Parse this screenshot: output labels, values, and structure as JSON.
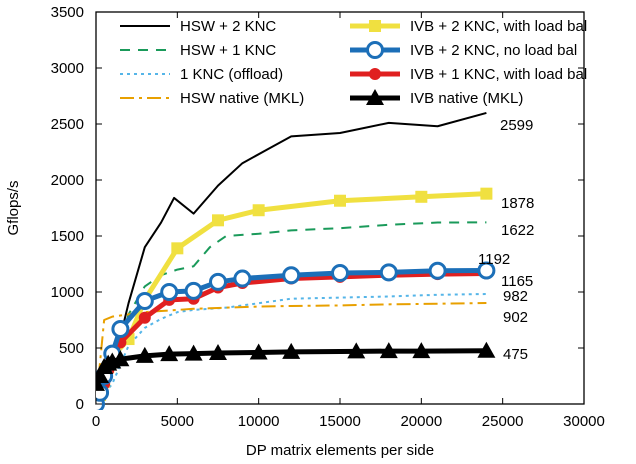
{
  "chart_data": {
    "type": "line",
    "title": "",
    "xlabel": "DP matrix elements per side",
    "ylabel": "Gflops/s",
    "xlim": [
      0,
      30000
    ],
    "ylim": [
      0,
      3500
    ],
    "xticks": [
      0,
      5000,
      10000,
      15000,
      20000,
      25000,
      30000
    ],
    "yticks": [
      0,
      500,
      1000,
      1500,
      2000,
      2500,
      3000,
      3500
    ],
    "legend_position": "top",
    "series": [
      {
        "name": "HSW + 2 KNC",
        "color": "#000000",
        "dash": "solid",
        "width": 2,
        "marker": "none",
        "x": [
          0,
          1000,
          2000,
          3000,
          4000,
          4800,
          6000,
          7500,
          9000,
          10500,
          12000,
          15000,
          18000,
          21000,
          24000
        ],
        "y": [
          0,
          300,
          900,
          1400,
          1620,
          1840,
          1700,
          1950,
          2150,
          2270,
          2390,
          2420,
          2510,
          2480,
          2599
        ],
        "end_label": "2599"
      },
      {
        "name": "HSW + 1 KNC",
        "color": "#1a9a5a",
        "dash": "10,8",
        "width": 2,
        "marker": "none",
        "x": [
          0,
          1000,
          2000,
          3000,
          4000,
          5000,
          6000,
          7000,
          8000,
          10000,
          12000,
          15000,
          18000,
          21000,
          24000
        ],
        "y": [
          0,
          280,
          800,
          1050,
          1150,
          1200,
          1230,
          1400,
          1500,
          1520,
          1550,
          1570,
          1600,
          1620,
          1622
        ],
        "end_label": "1622"
      },
      {
        "name": "1 KNC (offload)",
        "color": "#55b5e8",
        "dash": "3,4",
        "width": 2,
        "marker": "none",
        "x": [
          0,
          1000,
          2000,
          3000,
          4000,
          5000,
          6000,
          7000,
          8000,
          10000,
          12000,
          15000,
          18000,
          21000,
          24000
        ],
        "y": [
          0,
          180,
          520,
          680,
          760,
          820,
          840,
          850,
          860,
          900,
          940,
          950,
          960,
          975,
          982
        ],
        "end_label": "982"
      },
      {
        "name": "HSW native (MKL)",
        "color": "#e8a000",
        "dash": "14,5,3,5",
        "width": 2,
        "marker": "none",
        "x": [
          0,
          500,
          1000,
          2000,
          3000,
          4000,
          5000,
          6000,
          7000,
          8000,
          10000,
          12000,
          15000,
          18000,
          21000,
          24000
        ],
        "y": [
          0,
          750,
          780,
          800,
          820,
          830,
          840,
          850,
          855,
          860,
          870,
          875,
          880,
          890,
          895,
          902
        ],
        "end_label": "902"
      },
      {
        "name": "IVB + 2 KNC, with load bal",
        "color": "#f0e040",
        "dash": "solid",
        "width": 5,
        "marker": "square",
        "x": [
          0,
          250,
          500,
          750,
          1000,
          2000,
          3000,
          5000,
          7500,
          10000,
          15000,
          20000,
          24000
        ],
        "y": [
          0,
          80,
          200,
          330,
          420,
          580,
          930,
          1390,
          1640,
          1730,
          1815,
          1850,
          1878
        ],
        "end_label": "1878"
      },
      {
        "name": "IVB + 2 KNC, no load bal",
        "color": "#1c6fb8",
        "dash": "solid",
        "width": 5,
        "marker": "circle",
        "x": [
          0,
          250,
          500,
          1000,
          1500,
          3000,
          4500,
          6000,
          7500,
          9000,
          12000,
          15000,
          18000,
          21000,
          24000
        ],
        "y": [
          0,
          100,
          250,
          450,
          670,
          920,
          1000,
          1010,
          1090,
          1120,
          1150,
          1170,
          1175,
          1190,
          1192
        ],
        "end_label": "1192"
      },
      {
        "name": "IVB + 1 KNC, with load bal",
        "color": "#e02020",
        "dash": "solid",
        "width": 5,
        "marker": "circle-small",
        "x": [
          0,
          250,
          500,
          750,
          1000,
          1500,
          3000,
          4500,
          6000,
          7500,
          9000,
          12000,
          15000,
          18000,
          21000,
          24000
        ],
        "y": [
          0,
          80,
          180,
          300,
          400,
          550,
          770,
          930,
          940,
          1040,
          1080,
          1120,
          1135,
          1150,
          1160,
          1165
        ],
        "end_label": "1165"
      },
      {
        "name": "IVB native (MKL)",
        "color": "#000000",
        "dash": "solid",
        "width": 5,
        "marker": "triangle",
        "x": [
          0,
          250,
          500,
          750,
          1000,
          1500,
          3000,
          4500,
          6000,
          7500,
          10000,
          12000,
          16000,
          18000,
          20000,
          24000
        ],
        "y": [
          180,
          250,
          330,
          360,
          380,
          400,
          430,
          445,
          450,
          455,
          460,
          465,
          470,
          472,
          472,
          475
        ],
        "end_label": "475"
      }
    ]
  }
}
